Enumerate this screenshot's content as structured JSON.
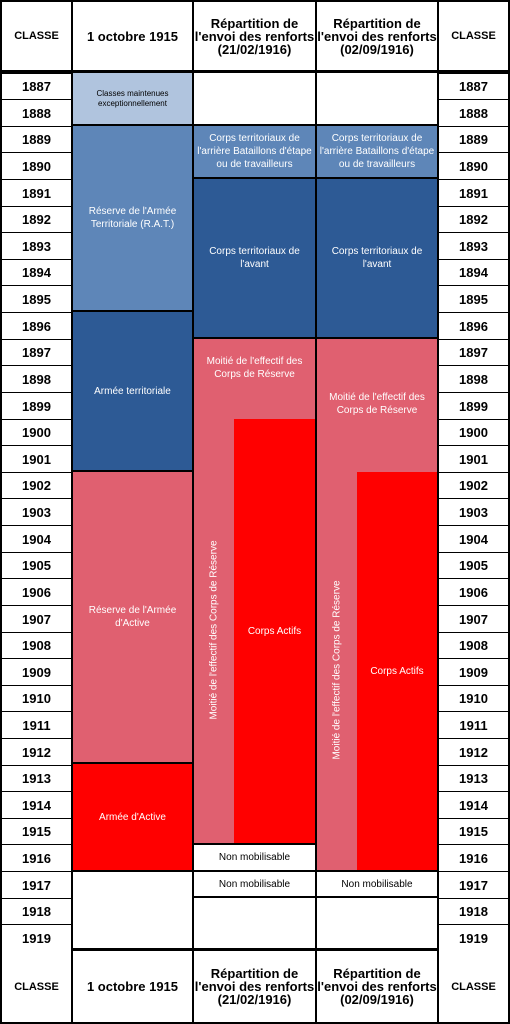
{
  "headers": {
    "classe": "CLASSE",
    "date_1915": "1 octobre 1915",
    "rep_1916_02": "Répartition de l'envoi des renforts (21/02/1916)",
    "rep_1916_09": "Répartition de l'envoi des renforts (02/09/1916)"
  },
  "years": [
    "1887",
    "1888",
    "1889",
    "1890",
    "1891",
    "1892",
    "1893",
    "1894",
    "1895",
    "1896",
    "1897",
    "1898",
    "1899",
    "1900",
    "1901",
    "1902",
    "1903",
    "1904",
    "1905",
    "1906",
    "1907",
    "1908",
    "1909",
    "1910",
    "1911",
    "1912",
    "1913",
    "1914",
    "1915",
    "1916",
    "1917",
    "1918",
    "1919"
  ],
  "col1915": {
    "classes_maintenues": "Classes maintenues exceptionnellement",
    "rat": "Réserve de l'Armée Territoriale (R.A.T.)",
    "territoriale": "Armée territoriale",
    "reserve_active": "Réserve de l'Armée d'Active",
    "active": "Armée d'Active"
  },
  "col_feb1916": {
    "arriere": "Corps territoriaux de l'arrière Bataillons d'étape ou de travailleurs",
    "avant": "Corps territoriaux de l'avant",
    "moitie_top": "Moitié de l'effectif des Corps de Réserve",
    "moitie_vertical": "Moitié de l'effectif des Corps de Réserve",
    "actifs": "Corps Actifs",
    "non_mob_1916": "Non mobilisable",
    "non_mob_1917": "Non mobilisable"
  },
  "col_sep1916": {
    "arriere": "Corps territoriaux de l'arrière Bataillons d'étape ou de travailleurs",
    "avant": "Corps territoriaux de l'avant",
    "moitie_top": "Moitié de l'effectif des Corps de Réserve",
    "moitie_vertical": "Moitié de l'effectif des Corps de Réserve",
    "actifs": "Corps Actifs",
    "non_mob_1917": "Non mobilisable"
  },
  "colors": {
    "grey_blue": "#b0c4de",
    "mid_blue": "#5e86b8",
    "dark_blue": "#2d5a95",
    "pink": "#e06070",
    "red": "#ff0000",
    "white": "#ffffff"
  }
}
